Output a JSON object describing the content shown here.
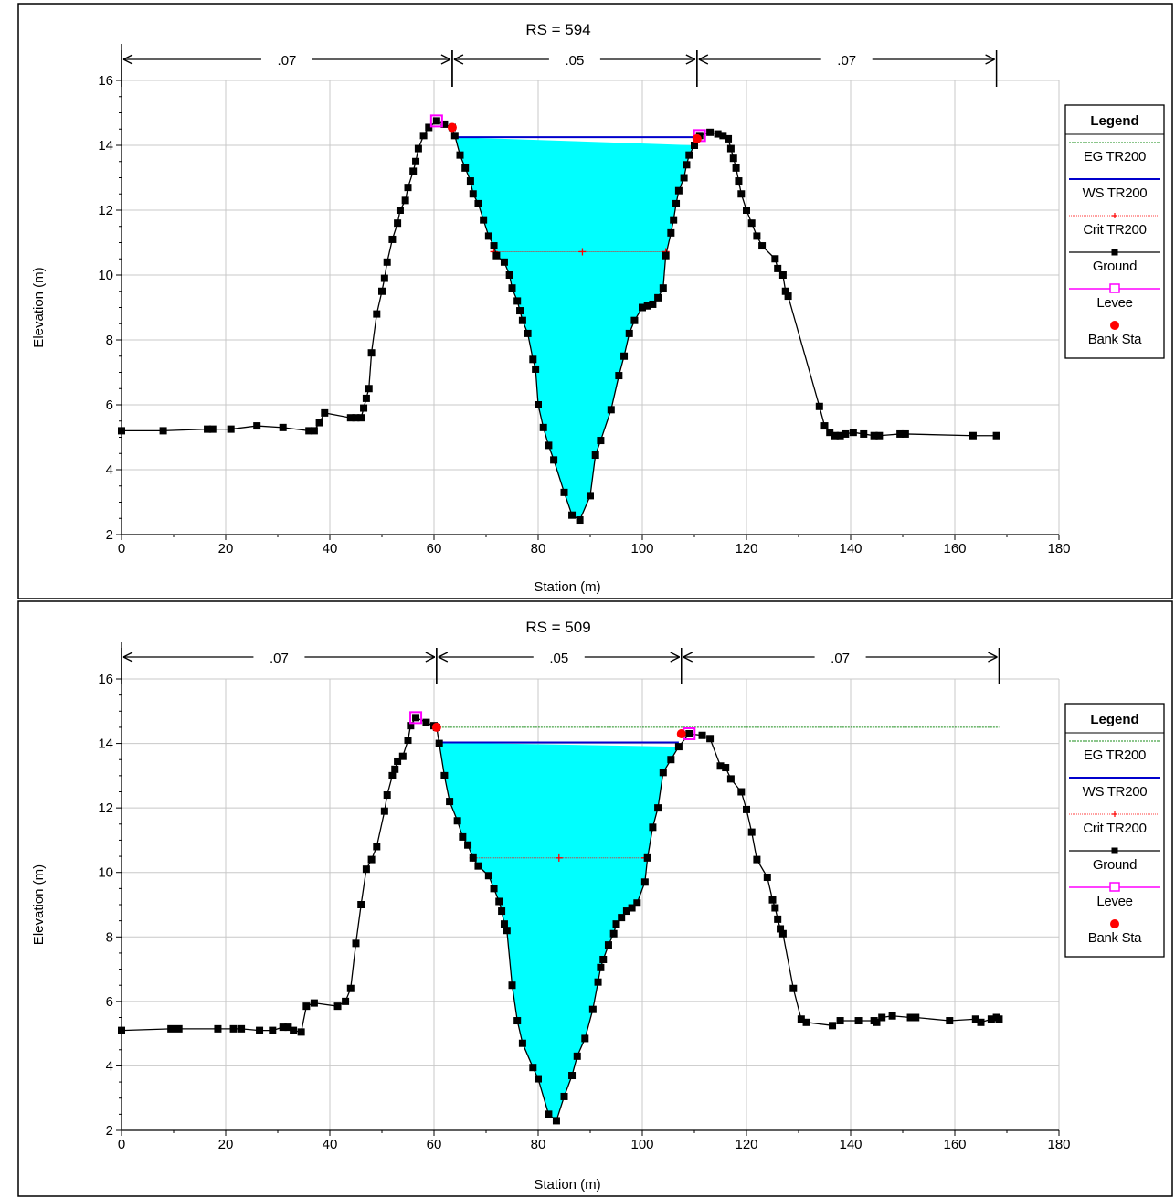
{
  "colors": {
    "eg": "#1a8c1a",
    "ws": "#0000cc",
    "crit": "#ff0000",
    "ground": "#000000",
    "levee": "#ff00ff",
    "bank": "#ff0000",
    "water": "#00ffff",
    "grid": "#c8c8c8"
  },
  "legend": {
    "title": "Legend",
    "items": [
      "EG TR200",
      "WS TR200",
      "Crit TR200",
      "Ground",
      "Levee",
      "Bank Sta"
    ]
  },
  "chart_data": [
    {
      "type": "line",
      "title": "RS = 594",
      "xlabel": "Station (m)",
      "ylabel": "Elevation (m)",
      "xlim": [
        0,
        180
      ],
      "ylim": [
        2,
        16
      ],
      "xticks": [
        0,
        20,
        40,
        60,
        80,
        100,
        120,
        140,
        160,
        180
      ],
      "yticks": [
        2,
        4,
        6,
        8,
        10,
        12,
        14,
        16
      ],
      "grid": true,
      "legend_position": "right",
      "mannings": [
        {
          "label": ".07",
          "from": 0,
          "to": 63.5
        },
        {
          "label": ".05",
          "from": 63.5,
          "to": 110.5
        },
        {
          "label": ".07",
          "from": 110.5,
          "to": 168
        }
      ],
      "eg": {
        "elevation": 14.72,
        "from": 63.5,
        "to": 168
      },
      "ws": {
        "elevation": 14.25,
        "from": 64,
        "to": 110
      },
      "crit": {
        "elevation": 10.72,
        "from": 71.5,
        "to": 104.5,
        "points": [
          71.5,
          88.5,
          104.5
        ]
      },
      "levees": [
        [
          60.5,
          14.75
        ],
        [
          111,
          14.3
        ]
      ],
      "bank_stations": [
        [
          63.5,
          14.55
        ],
        [
          110.5,
          14.2
        ]
      ],
      "ground": [
        [
          0,
          5.2
        ],
        [
          8,
          5.2
        ],
        [
          16.5,
          5.25
        ],
        [
          17.5,
          5.25
        ],
        [
          21,
          5.25
        ],
        [
          26,
          5.35
        ],
        [
          31,
          5.3
        ],
        [
          36,
          5.2
        ],
        [
          37,
          5.2
        ],
        [
          38,
          5.45
        ],
        [
          39,
          5.75
        ],
        [
          44,
          5.6
        ],
        [
          45,
          5.6
        ],
        [
          46,
          5.6
        ],
        [
          46.5,
          5.9
        ],
        [
          47,
          6.2
        ],
        [
          47.5,
          6.5
        ],
        [
          48,
          7.6
        ],
        [
          49,
          8.8
        ],
        [
          50,
          9.5
        ],
        [
          50.5,
          9.9
        ],
        [
          51,
          10.4
        ],
        [
          52,
          11.1
        ],
        [
          53,
          11.6
        ],
        [
          53.5,
          12.0
        ],
        [
          54.5,
          12.3
        ],
        [
          55,
          12.7
        ],
        [
          56,
          13.2
        ],
        [
          56.5,
          13.5
        ],
        [
          57,
          13.9
        ],
        [
          58,
          14.3
        ],
        [
          59,
          14.55
        ],
        [
          60.5,
          14.75
        ],
        [
          62,
          14.65
        ],
        [
          63.5,
          14.55
        ],
        [
          64,
          14.3
        ],
        [
          65,
          13.7
        ],
        [
          66,
          13.3
        ],
        [
          67,
          12.9
        ],
        [
          67.5,
          12.5
        ],
        [
          68.5,
          12.2
        ],
        [
          69.5,
          11.7
        ],
        [
          70.5,
          11.2
        ],
        [
          71.5,
          10.9
        ],
        [
          72,
          10.6
        ],
        [
          73.5,
          10.4
        ],
        [
          74.5,
          10.0
        ],
        [
          75,
          9.6
        ],
        [
          76,
          9.2
        ],
        [
          76.5,
          8.9
        ],
        [
          77,
          8.6
        ],
        [
          78,
          8.2
        ],
        [
          79,
          7.4
        ],
        [
          79.5,
          7.1
        ],
        [
          80,
          6.0
        ],
        [
          81,
          5.3
        ],
        [
          82,
          4.75
        ],
        [
          83,
          4.3
        ],
        [
          85,
          3.3
        ],
        [
          86.5,
          2.6
        ],
        [
          88,
          2.45
        ],
        [
          90,
          3.2
        ],
        [
          91,
          4.45
        ],
        [
          92,
          4.9
        ],
        [
          94,
          5.85
        ],
        [
          95.5,
          6.9
        ],
        [
          96.5,
          7.5
        ],
        [
          97.5,
          8.2
        ],
        [
          98.5,
          8.6
        ],
        [
          100,
          9.0
        ],
        [
          101,
          9.05
        ],
        [
          102,
          9.1
        ],
        [
          103,
          9.3
        ],
        [
          104,
          9.6
        ],
        [
          104.5,
          10.6
        ],
        [
          105.5,
          11.3
        ],
        [
          106,
          11.7
        ],
        [
          106.5,
          12.2
        ],
        [
          107,
          12.6
        ],
        [
          108,
          13.0
        ],
        [
          108.5,
          13.4
        ],
        [
          109,
          13.7
        ],
        [
          110,
          14.0
        ],
        [
          111,
          14.3
        ],
        [
          113,
          14.4
        ],
        [
          114.5,
          14.35
        ],
        [
          115.5,
          14.3
        ],
        [
          116.5,
          14.2
        ],
        [
          117,
          13.9
        ],
        [
          117.5,
          13.6
        ],
        [
          118,
          13.3
        ],
        [
          118.5,
          12.9
        ],
        [
          119,
          12.5
        ],
        [
          120,
          12.0
        ],
        [
          121,
          11.6
        ],
        [
          122,
          11.2
        ],
        [
          123,
          10.9
        ],
        [
          125.5,
          10.5
        ],
        [
          126,
          10.2
        ],
        [
          127,
          10.0
        ],
        [
          127.5,
          9.5
        ],
        [
          128,
          9.35
        ],
        [
          134,
          5.95
        ],
        [
          135,
          5.35
        ],
        [
          136,
          5.15
        ],
        [
          137,
          5.05
        ],
        [
          138,
          5.05
        ],
        [
          139,
          5.1
        ],
        [
          140.5,
          5.15
        ],
        [
          142.5,
          5.1
        ],
        [
          144.5,
          5.05
        ],
        [
          145.5,
          5.05
        ],
        [
          149.5,
          5.1
        ],
        [
          150.5,
          5.1
        ],
        [
          163.5,
          5.05
        ],
        [
          168,
          5.05
        ]
      ]
    },
    {
      "type": "line",
      "title": "RS = 509",
      "xlabel": "Station (m)",
      "ylabel": "Elevation (m)",
      "xlim": [
        0,
        180
      ],
      "ylim": [
        2,
        16
      ],
      "xticks": [
        0,
        20,
        40,
        60,
        80,
        100,
        120,
        140,
        160,
        180
      ],
      "yticks": [
        2,
        4,
        6,
        8,
        10,
        12,
        14,
        16
      ],
      "grid": true,
      "legend_position": "right",
      "mannings": [
        {
          "label": ".07",
          "from": 0,
          "to": 60.5
        },
        {
          "label": ".05",
          "from": 60.5,
          "to": 107.5
        },
        {
          "label": ".07",
          "from": 107.5,
          "to": 168.5
        }
      ],
      "eg": {
        "elevation": 14.5,
        "from": 60.5,
        "to": 168.5
      },
      "ws": {
        "elevation": 14.03,
        "from": 61,
        "to": 107
      },
      "crit": {
        "elevation": 10.45,
        "from": 67.5,
        "to": 100.5,
        "points": [
          67.5,
          84,
          100.5
        ]
      },
      "levees": [
        [
          56.5,
          14.8
        ],
        [
          109,
          14.3
        ]
      ],
      "bank_stations": [
        [
          60.5,
          14.5
        ],
        [
          107.5,
          14.3
        ]
      ],
      "ground": [
        [
          0,
          5.1
        ],
        [
          9.5,
          5.15
        ],
        [
          11,
          5.15
        ],
        [
          18.5,
          5.15
        ],
        [
          21.5,
          5.15
        ],
        [
          23,
          5.15
        ],
        [
          26.5,
          5.1
        ],
        [
          29,
          5.1
        ],
        [
          31,
          5.2
        ],
        [
          32,
          5.2
        ],
        [
          33,
          5.1
        ],
        [
          34.5,
          5.05
        ],
        [
          35.5,
          5.85
        ],
        [
          37,
          5.95
        ],
        [
          41.5,
          5.85
        ],
        [
          43,
          6.0
        ],
        [
          44,
          6.4
        ],
        [
          45,
          7.8
        ],
        [
          46,
          9.0
        ],
        [
          47,
          10.1
        ],
        [
          48,
          10.4
        ],
        [
          49,
          10.8
        ],
        [
          50.5,
          11.9
        ],
        [
          51,
          12.4
        ],
        [
          52,
          13.0
        ],
        [
          52.5,
          13.2
        ],
        [
          53,
          13.45
        ],
        [
          54,
          13.6
        ],
        [
          55,
          14.1
        ],
        [
          55.5,
          14.55
        ],
        [
          56.5,
          14.8
        ],
        [
          58.5,
          14.65
        ],
        [
          60,
          14.55
        ],
        [
          60.5,
          14.5
        ],
        [
          61,
          14.0
        ],
        [
          62,
          13.0
        ],
        [
          63,
          12.2
        ],
        [
          64.5,
          11.6
        ],
        [
          65.5,
          11.1
        ],
        [
          66.5,
          10.85
        ],
        [
          67.5,
          10.45
        ],
        [
          68.5,
          10.2
        ],
        [
          70.5,
          9.9
        ],
        [
          71.5,
          9.5
        ],
        [
          72.5,
          9.1
        ],
        [
          73,
          8.8
        ],
        [
          73.5,
          8.4
        ],
        [
          74,
          8.2
        ],
        [
          75,
          6.5
        ],
        [
          76,
          5.4
        ],
        [
          77,
          4.7
        ],
        [
          79,
          3.95
        ],
        [
          80,
          3.6
        ],
        [
          82,
          2.5
        ],
        [
          83.5,
          2.3
        ],
        [
          85,
          3.05
        ],
        [
          86.5,
          3.7
        ],
        [
          87.5,
          4.3
        ],
        [
          89,
          4.85
        ],
        [
          90.5,
          5.75
        ],
        [
          91.5,
          6.6
        ],
        [
          92,
          7.05
        ],
        [
          92.5,
          7.3
        ],
        [
          93.5,
          7.75
        ],
        [
          94.5,
          8.1
        ],
        [
          95,
          8.4
        ],
        [
          96,
          8.6
        ],
        [
          97,
          8.8
        ],
        [
          98,
          8.9
        ],
        [
          99,
          9.05
        ],
        [
          100.5,
          9.7
        ],
        [
          101,
          10.45
        ],
        [
          102,
          11.4
        ],
        [
          103,
          12.0
        ],
        [
          104,
          13.1
        ],
        [
          105.5,
          13.5
        ],
        [
          107,
          13.9
        ],
        [
          109,
          14.3
        ],
        [
          111.5,
          14.25
        ],
        [
          113,
          14.15
        ],
        [
          115,
          13.3
        ],
        [
          116,
          13.25
        ],
        [
          117,
          12.9
        ],
        [
          119,
          12.5
        ],
        [
          120,
          11.95
        ],
        [
          121,
          11.25
        ],
        [
          122,
          10.4
        ],
        [
          124,
          9.85
        ],
        [
          125,
          9.15
        ],
        [
          125.5,
          8.9
        ],
        [
          126,
          8.55
        ],
        [
          126.5,
          8.25
        ],
        [
          127,
          8.1
        ],
        [
          129,
          6.4
        ],
        [
          130.5,
          5.45
        ],
        [
          131.5,
          5.35
        ],
        [
          136.5,
          5.25
        ],
        [
          138,
          5.4
        ],
        [
          141.5,
          5.4
        ],
        [
          144.5,
          5.4
        ],
        [
          145,
          5.35
        ],
        [
          146,
          5.5
        ],
        [
          148,
          5.55
        ],
        [
          151.5,
          5.5
        ],
        [
          152.5,
          5.5
        ],
        [
          159,
          5.4
        ],
        [
          164,
          5.45
        ],
        [
          165,
          5.35
        ],
        [
          167,
          5.45
        ],
        [
          168,
          5.5
        ],
        [
          168.5,
          5.45
        ]
      ]
    }
  ]
}
